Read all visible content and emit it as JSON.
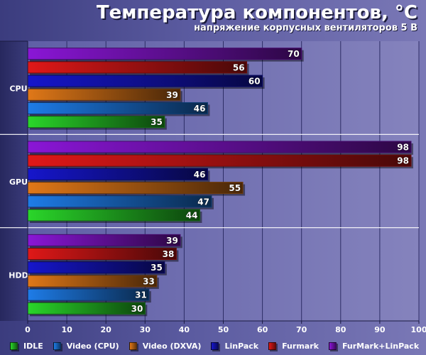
{
  "chart_data": {
    "type": "bar",
    "orientation": "horizontal",
    "title": "Температура компонентов, °C",
    "subtitle": "напряжение корпусных вентиляторов 5 В",
    "categories": [
      "CPU",
      "GPU",
      "HDD"
    ],
    "series": [
      {
        "name": "IDLE",
        "color": "#2ad62a",
        "values": [
          35,
          44,
          30
        ]
      },
      {
        "name": "Video (CPU)",
        "color": "#1e7ce8",
        "values": [
          46,
          47,
          31
        ]
      },
      {
        "name": "Video (DXVA)",
        "color": "#e07818",
        "values": [
          39,
          55,
          33
        ]
      },
      {
        "name": "LinPack",
        "color": "#1616cc",
        "values": [
          60,
          46,
          35
        ]
      },
      {
        "name": "Furmark",
        "color": "#e01818",
        "values": [
          56,
          98,
          38
        ]
      },
      {
        "name": "FurMark+LinPack",
        "color": "#8a16d6",
        "values": [
          70,
          98,
          39
        ]
      }
    ],
    "xlim": [
      0,
      100
    ],
    "xticks": [
      0,
      10,
      20,
      30,
      40,
      50,
      60,
      70,
      80,
      90,
      100
    ],
    "grid": true,
    "legend_position": "bottom"
  }
}
